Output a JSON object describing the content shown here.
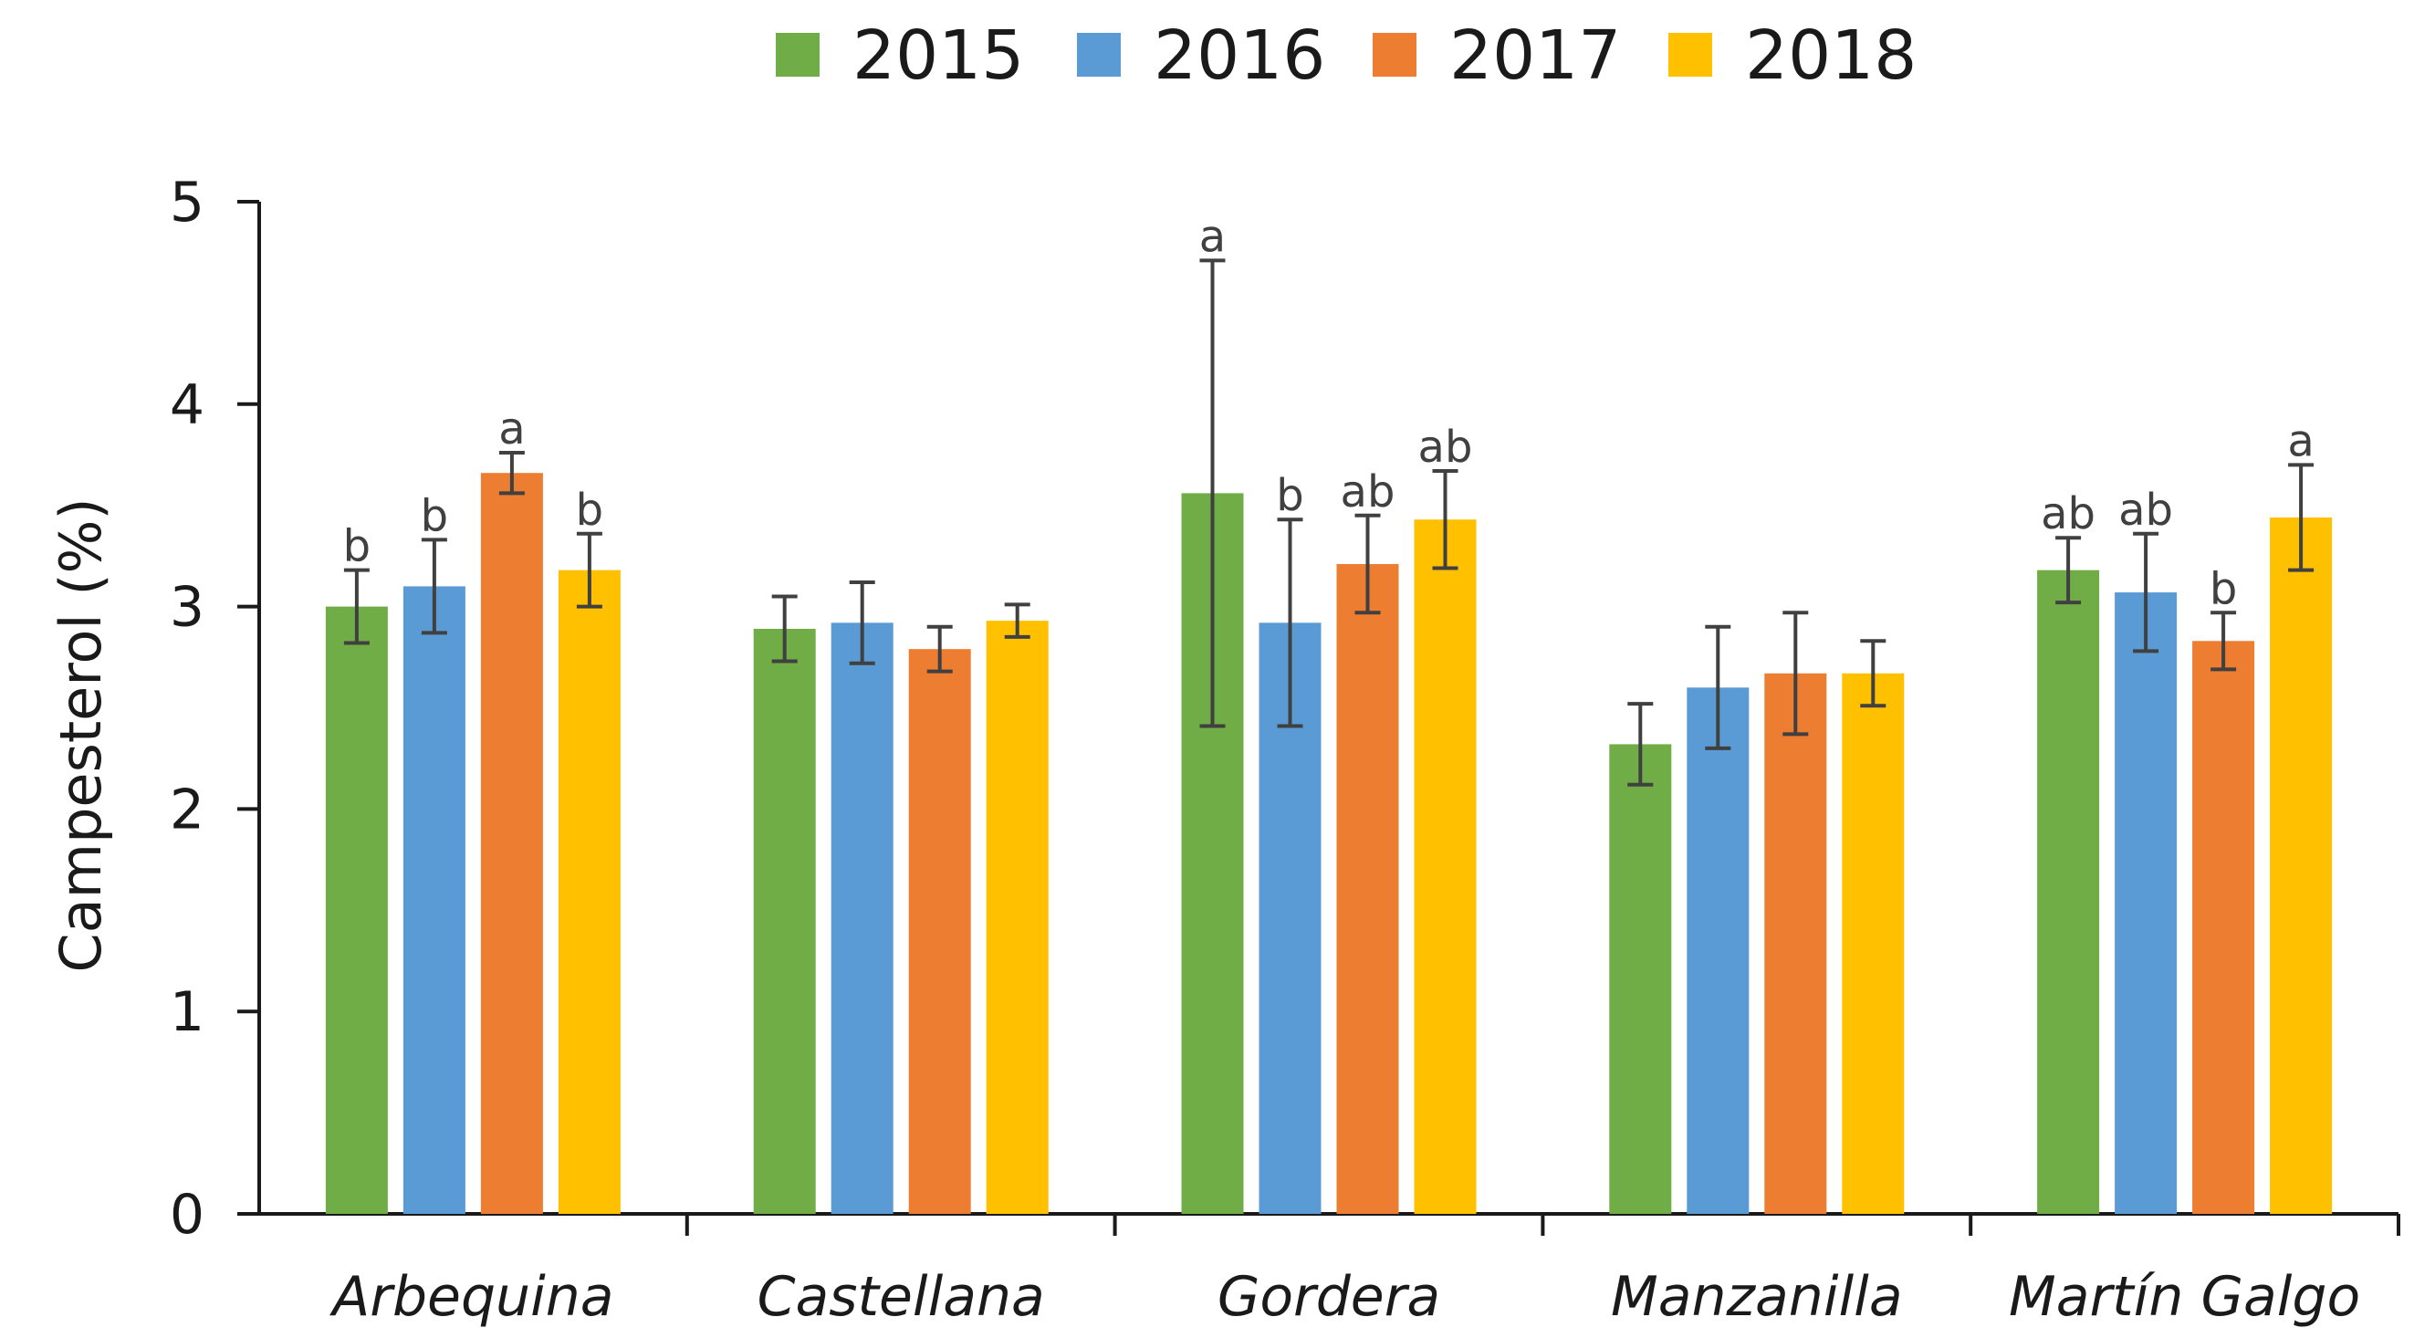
{
  "chart_data": {
    "type": "bar",
    "title": "",
    "xlabel": "",
    "ylabel": "Campesterol (%)",
    "ylim": [
      0,
      5
    ],
    "yticks": [
      0,
      1,
      2,
      3,
      4,
      5
    ],
    "grid": false,
    "legend_position": "top-center",
    "categories": [
      "Arbequina",
      "Castellana",
      "Gordera",
      "Manzanilla",
      "Martín Galgo"
    ],
    "series": [
      {
        "name": "2015",
        "color": "#70ad47",
        "values": [
          3.0,
          2.89,
          3.56,
          2.32,
          3.18
        ],
        "errors": [
          0.18,
          0.16,
          1.15,
          0.2,
          0.16
        ],
        "labels": [
          "b",
          "",
          "a",
          "",
          "ab"
        ]
      },
      {
        "name": "2016",
        "color": "#5b9bd5",
        "values": [
          3.1,
          2.92,
          2.92,
          2.6,
          3.07
        ],
        "errors": [
          0.23,
          0.2,
          0.51,
          0.3,
          0.29
        ],
        "labels": [
          "b",
          "",
          "b",
          "",
          "ab"
        ]
      },
      {
        "name": "2017",
        "color": "#ed7d31",
        "values": [
          3.66,
          2.79,
          3.21,
          2.67,
          2.83
        ],
        "errors": [
          0.1,
          0.11,
          0.24,
          0.3,
          0.14
        ],
        "labels": [
          "a",
          "",
          "ab",
          "",
          "b"
        ]
      },
      {
        "name": "2018",
        "color": "#ffc000",
        "values": [
          3.18,
          2.93,
          3.43,
          2.67,
          3.44
        ],
        "errors": [
          0.18,
          0.08,
          0.24,
          0.16,
          0.26
        ],
        "labels": [
          "b",
          "",
          "ab",
          "",
          "a"
        ]
      }
    ],
    "error_bar_color": "#404040",
    "axis_color": "#1a1a1a"
  }
}
